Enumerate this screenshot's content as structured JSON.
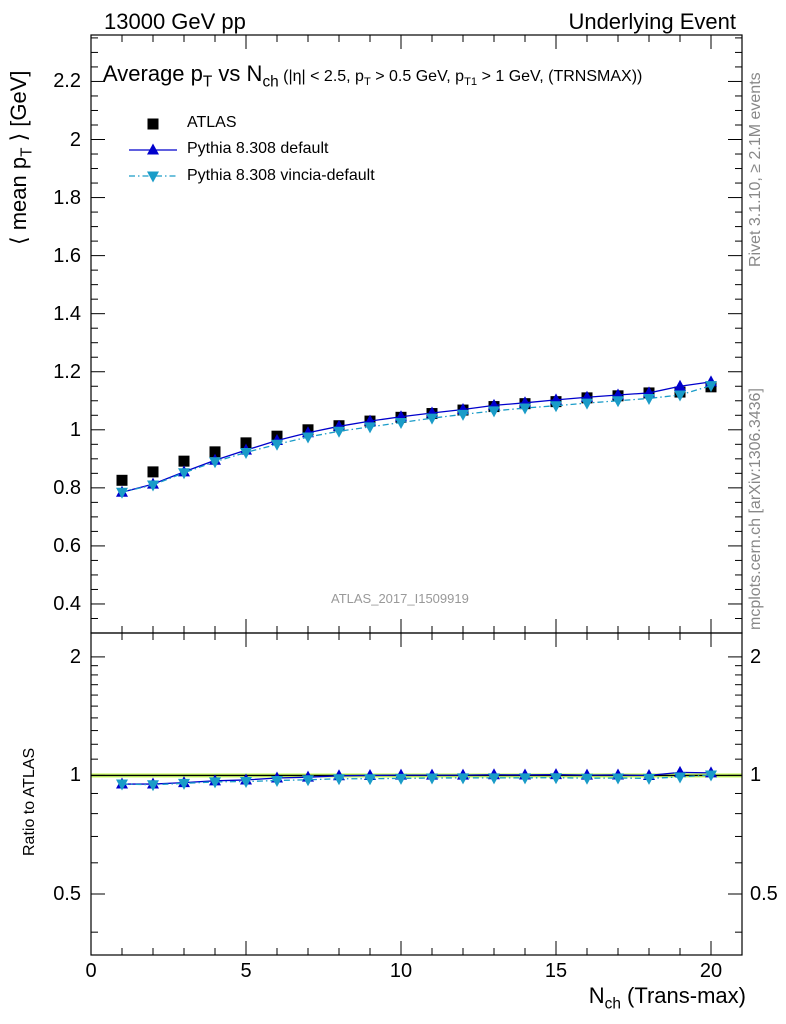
{
  "header": {
    "left": "13000 GeV pp",
    "right": "Underlying Event"
  },
  "side_labels": {
    "rivet": "Rivet 3.1.10, ≥ 2.1M events",
    "mcplots": "mcplots.cern.ch [arXiv:1306.3436]"
  },
  "watermark": "ATLAS_2017_I1509919",
  "title": {
    "main_a": "Average p",
    "main_sub_a": "T",
    "main_b": " vs N",
    "main_sub_b": "ch",
    "cuts_a": " (|η| < 2.5, p",
    "cuts_sub_a": "T",
    "cuts_b": " > 0.5 GeV, p",
    "cuts_sub_b": "T1",
    "cuts_c": " > 1 GeV, (TRNSMAX))"
  },
  "axes": {
    "ylabel_main": "⟨ mean p",
    "ylabel_main_sub": "T",
    "ylabel_main_end": " ⟩ [GeV]",
    "ylabel_ratio": "Ratio to ATLAS",
    "xlabel": "N",
    "xlabel_sub": "ch",
    "xlabel_end": " (Trans-max)"
  },
  "legend": [
    {
      "label": "ATLAS",
      "color": "#000000",
      "marker": "square",
      "line": "none"
    },
    {
      "label": "Pythia 8.308 default",
      "color": "#0000cc",
      "marker": "triangle-up",
      "line": "solid"
    },
    {
      "label": "Pythia 8.308 vincia-default",
      "color": "#1a9cc8",
      "marker": "triangle-down",
      "line": "dash-dot"
    }
  ],
  "colors": {
    "data": "#000000",
    "pythia_default": "#0000cc",
    "pythia_vincia": "#1a9cc8",
    "ratio_band": "#ccff66"
  },
  "chart_data": [
    {
      "type": "scatter",
      "panel": "main",
      "xlim": [
        0,
        21
      ],
      "ylim": [
        0.3,
        2.36
      ],
      "yticks": [
        0.4,
        0.6,
        0.8,
        1.0,
        1.2,
        1.4,
        1.6,
        1.8,
        2.0,
        2.2
      ],
      "ytick_labels": [
        "0.4",
        "0.6",
        "0.8",
        "1",
        "1.2",
        "1.4",
        "1.6",
        "1.8",
        "2",
        "2.2"
      ],
      "x": [
        1,
        2,
        3,
        4,
        5,
        6,
        7,
        8,
        9,
        10,
        11,
        12,
        13,
        14,
        15,
        16,
        17,
        18,
        19,
        20
      ],
      "series": [
        {
          "name": "ATLAS",
          "values": [
            0.826,
            0.855,
            0.892,
            0.924,
            0.955,
            0.978,
            1.0,
            1.014,
            1.03,
            1.043,
            1.056,
            1.068,
            1.08,
            1.09,
            1.097,
            1.11,
            1.117,
            1.127,
            1.13,
            1.148
          ]
        },
        {
          "name": "Pythia 8.308 default",
          "values": [
            0.785,
            0.813,
            0.855,
            0.895,
            0.93,
            0.963,
            0.99,
            1.012,
            1.03,
            1.045,
            1.058,
            1.07,
            1.084,
            1.093,
            1.103,
            1.112,
            1.12,
            1.127,
            1.15,
            1.165
          ]
        },
        {
          "name": "Pythia 8.308 vincia-default",
          "values": [
            0.785,
            0.81,
            0.852,
            0.89,
            0.922,
            0.95,
            0.975,
            0.995,
            1.01,
            1.025,
            1.04,
            1.053,
            1.065,
            1.075,
            1.083,
            1.092,
            1.1,
            1.108,
            1.12,
            1.152
          ]
        }
      ]
    },
    {
      "type": "scatter",
      "panel": "ratio",
      "xlim": [
        0,
        21
      ],
      "ylim": [
        0.35,
        2.3
      ],
      "yscale": "log",
      "yticks": [
        0.5,
        1,
        2
      ],
      "ytick_labels": [
        "0.5",
        "1",
        "2"
      ],
      "xticks": [
        0,
        5,
        10,
        15,
        20
      ],
      "xtick_labels": [
        "0",
        "5",
        "10",
        "15",
        "20"
      ],
      "x": [
        1,
        2,
        3,
        4,
        5,
        6,
        7,
        8,
        9,
        10,
        11,
        12,
        13,
        14,
        15,
        16,
        17,
        18,
        19,
        20
      ],
      "series": [
        {
          "name": "Pythia 8.308 default",
          "values": [
            0.951,
            0.951,
            0.959,
            0.969,
            0.974,
            0.985,
            0.99,
            0.998,
            1.0,
            1.002,
            1.002,
            1.002,
            1.004,
            1.003,
            1.005,
            1.002,
            1.003,
            1.0,
            1.018,
            1.015
          ]
        },
        {
          "name": "Pythia 8.308 vincia-default",
          "values": [
            0.951,
            0.947,
            0.955,
            0.963,
            0.965,
            0.971,
            0.975,
            0.981,
            0.981,
            0.983,
            0.985,
            0.986,
            0.986,
            0.986,
            0.987,
            0.984,
            0.985,
            0.983,
            0.991,
            1.003
          ]
        }
      ]
    }
  ]
}
